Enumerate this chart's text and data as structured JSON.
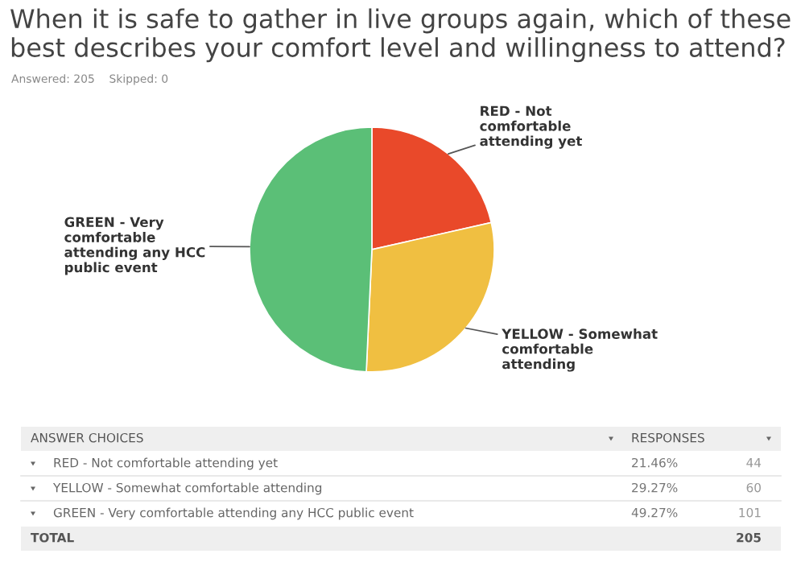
{
  "chart_data": {
    "type": "pie",
    "title": "When it is safe to gather in live groups again, which of these best describes your comfort level and willingness to attend?",
    "subtitle": "Answered: 205    Skipped: 0",
    "categories": [
      "RED - Not comfortable attending yet",
      "YELLOW - Somewhat comfortable attending",
      "GREEN - Very comfortable attending any HCC public event"
    ],
    "values": [
      21.46,
      29.27,
      49.27
    ],
    "colors": [
      "#e9492a",
      "#f0bf41",
      "#5bbf77"
    ],
    "legend": false,
    "annotations": [
      "ANSWER CHOICES",
      "RESPONSES",
      "TOTAL",
      "205",
      "21.46%",
      "44",
      "29.27%",
      "60",
      "49.27%",
      "101"
    ]
  }
}
